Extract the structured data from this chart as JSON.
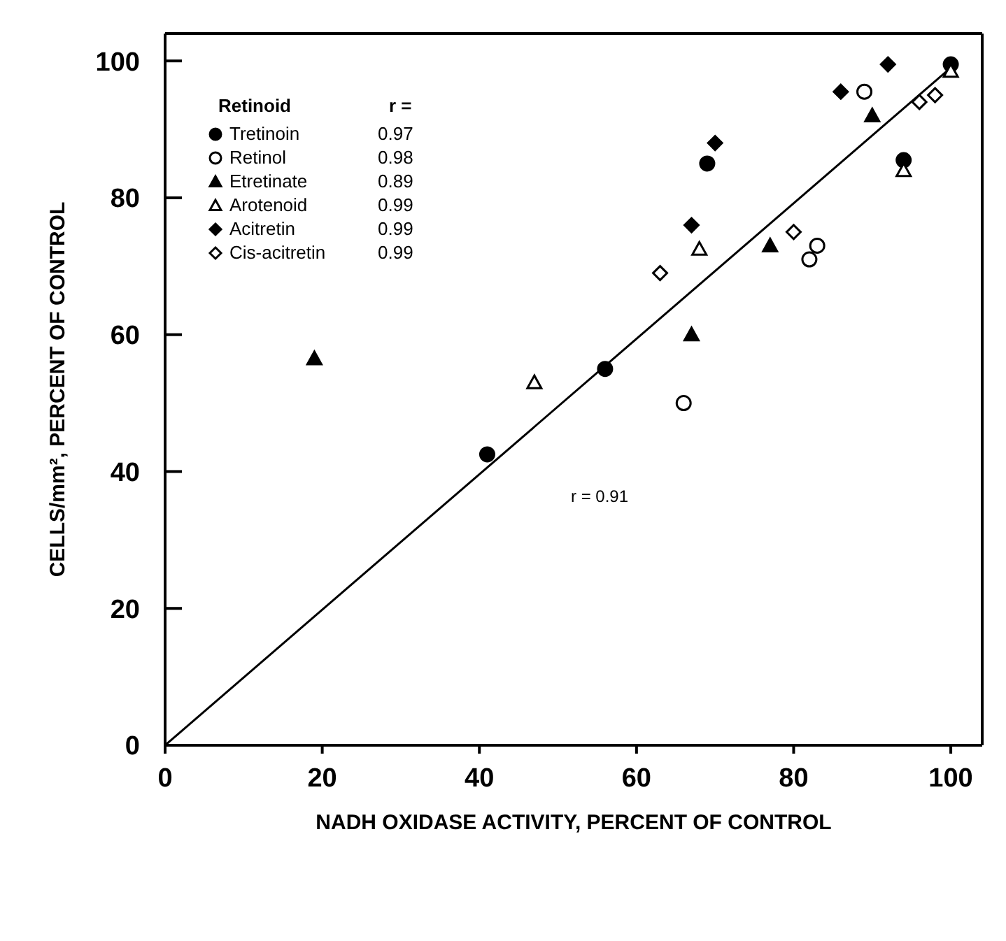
{
  "chart_data": {
    "type": "scatter",
    "xlabel": "NADH OXIDASE ACTIVITY, PERCENT OF CONTROL",
    "ylabel": "CELLS/mm², PERCENT OF CONTROL",
    "legend_title": "Retinoid",
    "legend": "top left",
    "grid": false,
    "xlim": [
      0,
      104
    ],
    "xticks": [
      0,
      20,
      40,
      60,
      80,
      100
    ],
    "ylim": [
      0,
      104
    ],
    "yticks": [
      0,
      20,
      40,
      60,
      80,
      100
    ],
    "annotations": [
      "r =",
      "0.97",
      "0.98",
      "0.89",
      "0.99",
      "0.99",
      "0.99",
      "r = 0.91"
    ],
    "series": [
      {
        "name": "Tretinoin",
        "color": "#000000",
        "marker": "circle",
        "x": [
          41,
          56,
          69,
          94,
          100
        ],
        "values": [
          42.5,
          55,
          85,
          85.5,
          99.5
        ]
      },
      {
        "name": "Retinol",
        "color": "#ffffff",
        "marker": "circle",
        "x": [
          66,
          82,
          83,
          89
        ],
        "values": [
          50,
          71,
          73,
          95.5
        ]
      },
      {
        "name": "Etretinate",
        "color": "#000000",
        "marker": "triangle",
        "x": [
          19,
          67,
          77,
          90
        ],
        "values": [
          56.5,
          60,
          73,
          92
        ]
      },
      {
        "name": "Arotenoid",
        "color": "#ffffff",
        "marker": "triangle",
        "x": [
          47,
          68,
          94,
          100
        ],
        "values": [
          53,
          72.5,
          84,
          98.5
        ]
      },
      {
        "name": "Acitretin",
        "color": "#000000",
        "marker": "diamond",
        "x": [
          67,
          70,
          86,
          92
        ],
        "values": [
          76,
          88,
          95.5,
          99.5
        ]
      },
      {
        "name": "Cis-acitretin",
        "color": "#ffffff",
        "marker": "diamond",
        "x": [
          63,
          80,
          96,
          98
        ],
        "values": [
          69,
          75,
          94,
          95
        ]
      },
      {
        "type": "line",
        "color": "#000000",
        "x": [
          0,
          100
        ],
        "values": [
          0,
          99
        ]
      }
    ]
  }
}
